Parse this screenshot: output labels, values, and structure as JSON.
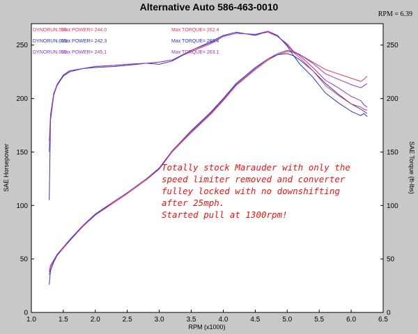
{
  "header": {
    "title": "Alternative Auto 586-463-0010",
    "rpm_readout": "RPM = 6.39"
  },
  "chart_data": {
    "type": "line",
    "title": "Alternative Auto 586-463-0010",
    "xlabel": "RPM (x1000)",
    "ylabel": "SAE Horsepower",
    "y2label": "SAE Torque (ft-lbs)",
    "xlim": [
      1.0,
      6.5
    ],
    "ylim": [
      0,
      270
    ],
    "y2lim": [
      0,
      270
    ],
    "grid": false,
    "x_ticks": [
      "1.0",
      "1.5",
      "2.0",
      "2.5",
      "3.0",
      "3.5",
      "4.0",
      "4.5",
      "5.0",
      "5.5",
      "6.0",
      "6.5"
    ],
    "y_ticks": [
      "0",
      "50",
      "100",
      "150",
      "200",
      "250"
    ],
    "legend": [
      {
        "run": "DYNORUN.004",
        "power": "Max POWER= 244.0",
        "torque": "Max TORQUE= 262.4",
        "color": "#d4405a"
      },
      {
        "run": "DYNORUN.003",
        "power": "Max POWER= 242.3",
        "torque": "Max TORQUE= 263.4",
        "color": "#2838b0"
      },
      {
        "run": "DYNORUN.002",
        "power": "Max POWER= 245.1",
        "torque": "Max TORQUE= 263.1",
        "color": "#9038b8"
      }
    ],
    "annotation": [
      "Totally stock Marauder with only the",
      "speed limiter removed and converter",
      "fulley locked with no downshifting",
      "after 25mph.",
      "Started pull at 1300rpm!"
    ],
    "x": [
      1.28,
      1.3,
      1.35,
      1.4,
      1.5,
      1.6,
      1.8,
      2.0,
      2.3,
      2.5,
      2.8,
      3.0,
      3.2,
      3.5,
      3.8,
      4.0,
      4.2,
      4.5,
      4.7,
      4.85,
      5.0,
      5.1,
      5.2,
      5.4,
      5.6,
      5.8,
      6.0,
      6.15,
      6.2,
      6.25
    ],
    "series": [
      {
        "measure": "power",
        "run": "DYNORUN.004",
        "color": "#d4405a",
        "values": [
          35,
          42,
          48,
          53,
          60,
          67,
          80,
          91,
          103,
          111,
          124,
          134,
          150,
          168,
          185,
          198,
          212,
          227,
          236,
          241,
          244,
          243,
          241,
          234,
          227,
          223,
          219,
          216,
          218,
          221
        ]
      },
      {
        "measure": "power",
        "run": "DYNORUN.003",
        "color": "#2838b0",
        "values": [
          26,
          39,
          47,
          53,
          61,
          68,
          81,
          92,
          104,
          112,
          125,
          135,
          151,
          170,
          187,
          200,
          214,
          229,
          237,
          241,
          242,
          240,
          236,
          226,
          214,
          204,
          195,
          190,
          188,
          186
        ]
      },
      {
        "measure": "power",
        "run": "DYNORUN.002",
        "color": "#9038b8",
        "values": [
          38,
          44,
          49,
          54,
          61,
          67,
          81,
          91,
          104,
          112,
          125,
          134,
          151,
          169,
          186,
          199,
          213,
          228,
          237,
          242,
          245,
          244,
          241,
          233,
          223,
          218,
          213,
          210,
          212,
          214
        ]
      },
      {
        "measure": "torque",
        "run": "DYNORUN.004",
        "color": "#d4405a",
        "values": [
          160,
          185,
          205,
          212,
          222,
          226,
          228,
          230,
          231,
          232,
          233,
          234,
          236,
          244,
          251,
          258,
          261,
          260,
          262,
          258,
          250,
          243,
          238,
          226,
          212,
          203,
          195,
          192,
          190,
          189
        ]
      },
      {
        "measure": "torque",
        "run": "DYNORUN.003",
        "color": "#2838b0",
        "values": [
          105,
          180,
          203,
          212,
          221,
          225,
          228,
          229,
          230,
          231,
          233,
          232,
          235,
          245,
          253,
          259,
          262,
          259,
          263,
          259,
          249,
          240,
          232,
          220,
          205,
          196,
          188,
          184,
          186,
          183
        ]
      },
      {
        "measure": "torque",
        "run": "DYNORUN.002",
        "color": "#9038b8",
        "values": [
          150,
          183,
          204,
          213,
          222,
          226,
          228,
          230,
          231,
          232,
          233,
          234,
          236,
          245,
          252,
          258,
          261,
          260,
          263,
          258,
          251,
          244,
          240,
          229,
          217,
          210,
          202,
          198,
          194,
          192
        ]
      }
    ]
  }
}
